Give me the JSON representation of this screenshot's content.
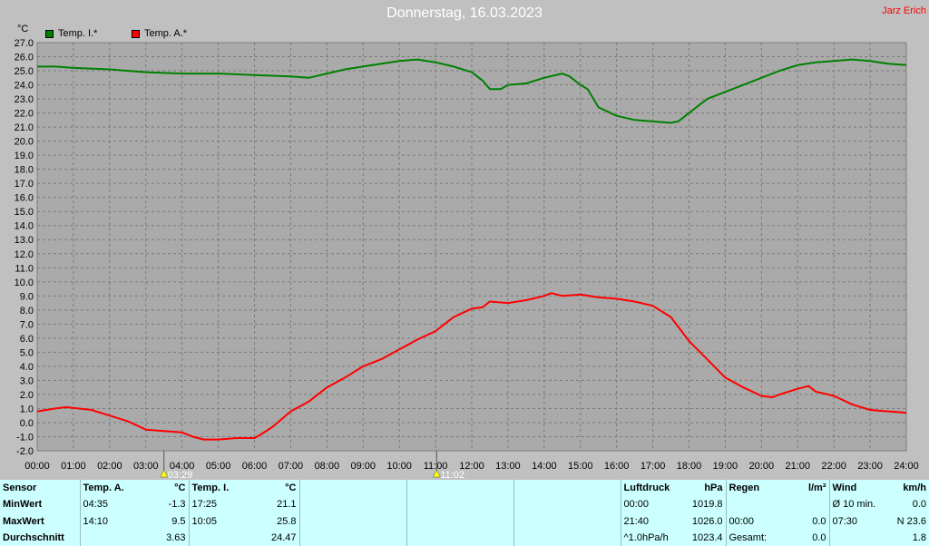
{
  "header": {
    "title": "Donnerstag, 16.03.2023",
    "author": "Jarz Erich",
    "unit": "°C"
  },
  "legend": [
    {
      "label": "Temp. I.*",
      "color": "#008000"
    },
    {
      "label": "Temp. A.*",
      "color": "#ff0000"
    }
  ],
  "chart_data": {
    "type": "line",
    "xlabel": "",
    "ylabel": "°C",
    "ylim": [
      -2,
      27
    ],
    "xlim": [
      0,
      24
    ],
    "grid": true,
    "x_ticks": [
      "00:00",
      "01:00",
      "02:00",
      "03:00",
      "04:00",
      "05:00",
      "06:00",
      "07:00",
      "08:00",
      "09:00",
      "10:00",
      "11:00",
      "12:00",
      "13:00",
      "14:00",
      "15:00",
      "16:00",
      "17:00",
      "18:00",
      "19:00",
      "20:00",
      "21:00",
      "22:00",
      "23:00",
      "24:00"
    ],
    "y_ticks": [
      "-2.0",
      "-1.0",
      "0.0",
      "1.0",
      "2.0",
      "3.0",
      "4.0",
      "5.0",
      "6.0",
      "7.0",
      "8.0",
      "9.0",
      "10.0",
      "11.0",
      "12.0",
      "13.0",
      "14.0",
      "15.0",
      "16.0",
      "17.0",
      "18.0",
      "19.0",
      "20.0",
      "21.0",
      "22.0",
      "23.0",
      "24.0",
      "25.0",
      "26.0",
      "27.0"
    ],
    "series": [
      {
        "name": "Temp. I.*",
        "color": "#008000",
        "x": [
          0,
          0.5,
          1,
          2,
          3,
          4,
          5,
          6,
          7,
          7.5,
          8,
          8.5,
          9,
          9.5,
          10,
          10.5,
          11,
          11.5,
          12,
          12.3,
          12.5,
          12.8,
          13,
          13.5,
          14,
          14.5,
          14.7,
          15,
          15.2,
          15.5,
          16,
          16.5,
          17,
          17.5,
          17.7,
          18,
          18.5,
          19,
          19.5,
          20,
          20.5,
          21,
          21.5,
          22,
          22.5,
          23,
          23.5,
          24
        ],
        "y": [
          25.3,
          25.3,
          25.2,
          25.1,
          24.9,
          24.8,
          24.8,
          24.7,
          24.6,
          24.5,
          24.8,
          25.1,
          25.3,
          25.5,
          25.7,
          25.8,
          25.6,
          25.3,
          24.9,
          24.3,
          23.7,
          23.7,
          24.0,
          24.1,
          24.5,
          24.8,
          24.6,
          24.0,
          23.7,
          22.4,
          21.8,
          21.5,
          21.4,
          21.3,
          21.4,
          22.0,
          23.0,
          23.5,
          24.0,
          24.5,
          25.0,
          25.4,
          25.6,
          25.7,
          25.8,
          25.7,
          25.5,
          25.4
        ]
      },
      {
        "name": "Temp. A.*",
        "color": "#ff0000",
        "x": [
          0,
          0.5,
          0.8,
          1.5,
          2,
          2.5,
          3,
          3.5,
          4,
          4.3,
          4.6,
          5,
          5.5,
          6,
          6.2,
          6.5,
          7,
          7.5,
          8,
          8.5,
          9,
          9.5,
          10,
          10.5,
          11,
          11.5,
          12,
          12.3,
          12.5,
          13,
          13.5,
          14,
          14.2,
          14.5,
          15,
          15.5,
          16,
          16.5,
          17,
          17.5,
          18,
          18.5,
          19,
          19.5,
          20,
          20.3,
          20.5,
          21,
          21.3,
          21.5,
          22,
          22.5,
          23,
          24
        ],
        "y": [
          0.8,
          1.0,
          1.1,
          0.9,
          0.5,
          0.1,
          -0.5,
          -0.6,
          -0.7,
          -1.0,
          -1.2,
          -1.2,
          -1.1,
          -1.1,
          -0.8,
          -0.3,
          0.8,
          1.5,
          2.5,
          3.2,
          4.0,
          4.5,
          5.2,
          5.9,
          6.5,
          7.5,
          8.1,
          8.2,
          8.6,
          8.5,
          8.7,
          9.0,
          9.2,
          9.0,
          9.1,
          8.9,
          8.8,
          8.6,
          8.3,
          7.5,
          5.8,
          4.5,
          3.2,
          2.5,
          1.9,
          1.8,
          2.0,
          2.4,
          2.6,
          2.2,
          1.9,
          1.3,
          0.9,
          0.7
        ]
      }
    ]
  },
  "markers": [
    {
      "label": "03:29",
      "hour": 3.5
    },
    {
      "label": "11:02",
      "hour": 11.03
    }
  ],
  "stats": {
    "temp_out": {
      "sensor": "Sensor",
      "header": "Temp. A.",
      "unit": "°C",
      "min_label": "MinWert",
      "max_label": "MaxWert",
      "avg_label": "Durchschnitt",
      "min_time": "04:35",
      "min_val": "-1.3",
      "max_time": "14:10",
      "max_val": "9.5",
      "avg_val": "3.63"
    },
    "temp_in": {
      "header": "Temp. I.",
      "unit": "°C",
      "min_time": "17:25",
      "min_val": "21.1",
      "max_time": "10:05",
      "max_val": "25.8",
      "avg_val": "24.47"
    },
    "pressure": {
      "header": "Luftdruck",
      "unit": "hPa",
      "r1_time": "00:00",
      "r1_val": "1019.8",
      "r2_time": "21:40",
      "r2_val": "1026.0",
      "r3_label": "^1.0hPa/h",
      "r3_val": "1023.4"
    },
    "rain": {
      "header": "Regen",
      "unit": "l/m²",
      "r2_time": "00:00",
      "r2_val": "0.0",
      "r3_label": "Gesamt:",
      "r3_val": "0.0"
    },
    "wind": {
      "header": "Wind",
      "unit": "km/h",
      "r1_label": "Ø 10 min.",
      "r1_val": "0.0",
      "r2_time": "07:30",
      "r2_val": "N 23.6",
      "r3_val": "1.8"
    }
  }
}
